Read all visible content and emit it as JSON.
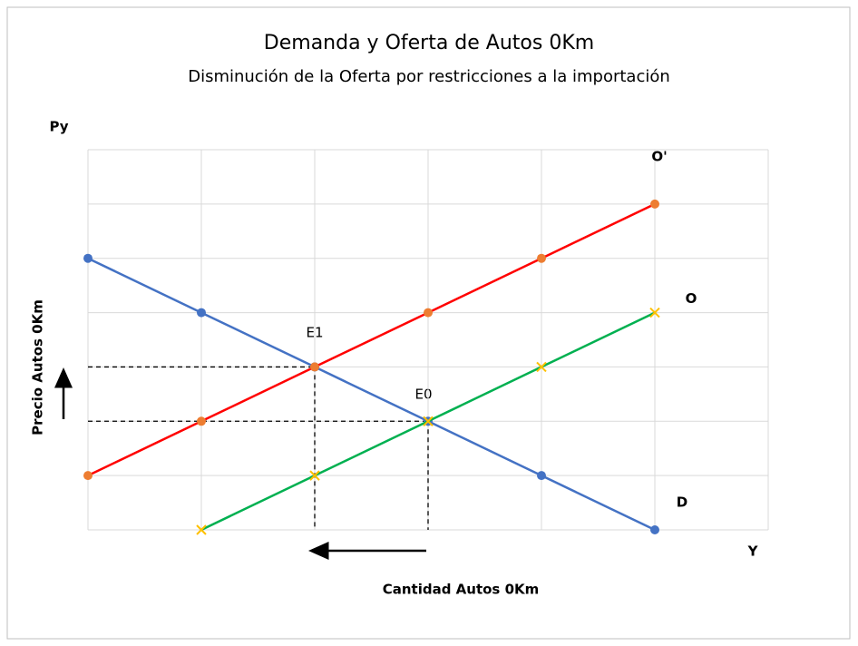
{
  "chart_data": {
    "type": "line",
    "title": "Demanda y Oferta de Autos 0Km",
    "subtitle": "Disminución de la Oferta por restricciones a la importación",
    "y_symbol": "Py",
    "x_symbol": "Y",
    "ylabel": "Precio Autos 0Km",
    "xlabel": "Cantidad Autos 0Km",
    "annotations": [
      "E1",
      "E0"
    ],
    "x": [
      0,
      1,
      2,
      3,
      4,
      5
    ],
    "xlim": [
      0,
      6
    ],
    "ylim": [
      0,
      7
    ],
    "xticks": [
      0,
      1,
      2,
      3,
      4,
      5,
      6
    ],
    "yticks": [
      0,
      1,
      2,
      3,
      4,
      5,
      6,
      7
    ],
    "grid": true,
    "series": [
      {
        "name": "D",
        "color": "#4472c4",
        "marker_color": "#4472c4",
        "marker": "circle",
        "values": [
          5,
          4,
          3,
          2,
          1,
          0
        ]
      },
      {
        "name": "O'",
        "color": "#ff0000",
        "marker_color": "#ed7d31",
        "marker": "circle",
        "values": [
          1,
          2,
          3,
          4,
          5,
          6
        ]
      },
      {
        "name": "O",
        "color": "#00b050",
        "marker_color": "#ffc000",
        "marker": "x",
        "values": [
          null,
          0,
          1,
          2,
          3,
          4
        ]
      }
    ]
  }
}
